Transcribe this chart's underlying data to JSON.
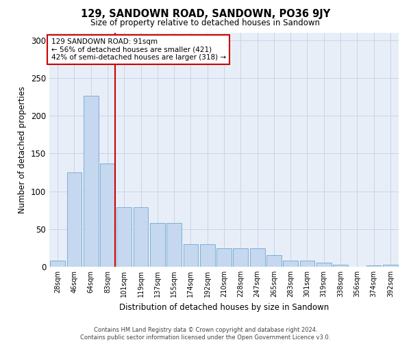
{
  "title": "129, SANDOWN ROAD, SANDOWN, PO36 9JY",
  "subtitle": "Size of property relative to detached houses in Sandown",
  "xlabel": "Distribution of detached houses by size in Sandown",
  "ylabel": "Number of detached properties",
  "footer_line1": "Contains HM Land Registry data © Crown copyright and database right 2024.",
  "footer_line2": "Contains public sector information licensed under the Open Government Licence v3.0.",
  "bin_labels": [
    "28sqm",
    "46sqm",
    "64sqm",
    "83sqm",
    "101sqm",
    "119sqm",
    "137sqm",
    "155sqm",
    "174sqm",
    "192sqm",
    "210sqm",
    "228sqm",
    "247sqm",
    "265sqm",
    "283sqm",
    "301sqm",
    "319sqm",
    "338sqm",
    "356sqm",
    "374sqm",
    "392sqm"
  ],
  "bar_heights": [
    8,
    125,
    226,
    137,
    79,
    79,
    58,
    58,
    30,
    30,
    24,
    24,
    24,
    15,
    8,
    8,
    5,
    3,
    0,
    2,
    3
  ],
  "bar_color": "#c5d8f0",
  "bar_edge_color": "#7bafd4",
  "annotation_text": "129 SANDOWN ROAD: 91sqm\n← 56% of detached houses are smaller (421)\n42% of semi-detached houses are larger (318) →",
  "annotation_box_facecolor": "#ffffff",
  "annotation_box_edgecolor": "#cc0000",
  "red_line_color": "#cc0000",
  "grid_color": "#c8d4e8",
  "background_color": "#e8eef7",
  "ylim": [
    0,
    310
  ],
  "yticks": [
    0,
    50,
    100,
    150,
    200,
    250,
    300
  ],
  "red_line_index": 3.44
}
